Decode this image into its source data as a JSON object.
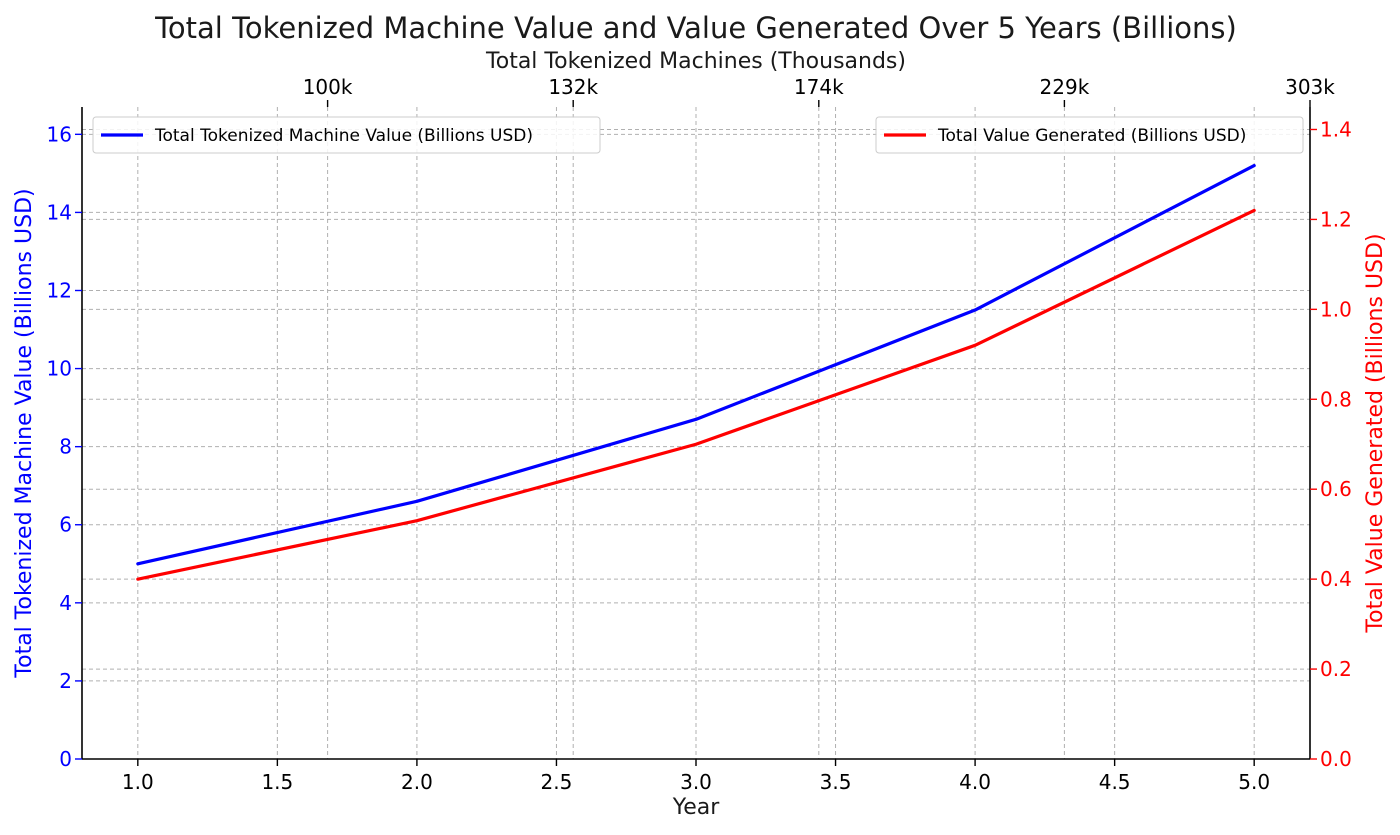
{
  "chart_data": {
    "type": "line",
    "title": "Total Tokenized Machine Value and Value Generated Over 5 Years (Billions)",
    "xlabel": "Year",
    "top_xlabel": "Total Tokenized Machines (Thousands)",
    "ylabel_left": "Total Tokenized Machine Value (Billions USD)",
    "ylabel_right": "Total Value Generated (Billions USD)",
    "x": [
      1,
      2,
      3,
      4,
      5
    ],
    "xlim": [
      0.8,
      5.2
    ],
    "ylim_left": [
      0,
      16.7
    ],
    "ylim_right": [
      0,
      1.45
    ],
    "x_ticks": [
      1.0,
      1.5,
      2.0,
      2.5,
      3.0,
      3.5,
      4.0,
      4.5,
      5.0
    ],
    "x_tick_labels": [
      "1.0",
      "1.5",
      "2.0",
      "2.5",
      "3.0",
      "3.5",
      "4.0",
      "4.5",
      "5.0"
    ],
    "left_ticks": [
      0,
      2,
      4,
      6,
      8,
      10,
      12,
      14,
      16
    ],
    "left_tick_labels": [
      "0",
      "2",
      "4",
      "6",
      "8",
      "10",
      "12",
      "14",
      "16"
    ],
    "right_ticks": [
      0,
      0.2,
      0.4,
      0.6,
      0.8,
      1.0,
      1.2,
      1.4
    ],
    "right_tick_labels": [
      "0.0",
      "0.2",
      "0.4",
      "0.6",
      "0.8",
      "1.0",
      "1.2",
      "1.4"
    ],
    "top_ticks": [
      1.68,
      2.56,
      3.44,
      4.32,
      5.2
    ],
    "top_tick_labels": [
      "100k",
      "132k",
      "174k",
      "229k",
      "303k"
    ],
    "grid": true,
    "series": [
      {
        "name": "Total Tokenized Machine Value (Billions USD)",
        "axis": "left",
        "color": "#0000ff",
        "values": [
          5.0,
          6.6,
          8.7,
          11.5,
          15.2
        ]
      },
      {
        "name": "Total Value Generated (Billions USD)",
        "axis": "right",
        "color": "#ff0000",
        "values": [
          0.4,
          0.53,
          0.7,
          0.92,
          1.22
        ]
      }
    ],
    "legend_left_placement": "top-left",
    "legend_right_placement": "top-right",
    "colors": {
      "left_axis": "#0000ff",
      "right_axis": "#ff0000",
      "text": "#000000",
      "grid": "#b0b0b0"
    }
  }
}
